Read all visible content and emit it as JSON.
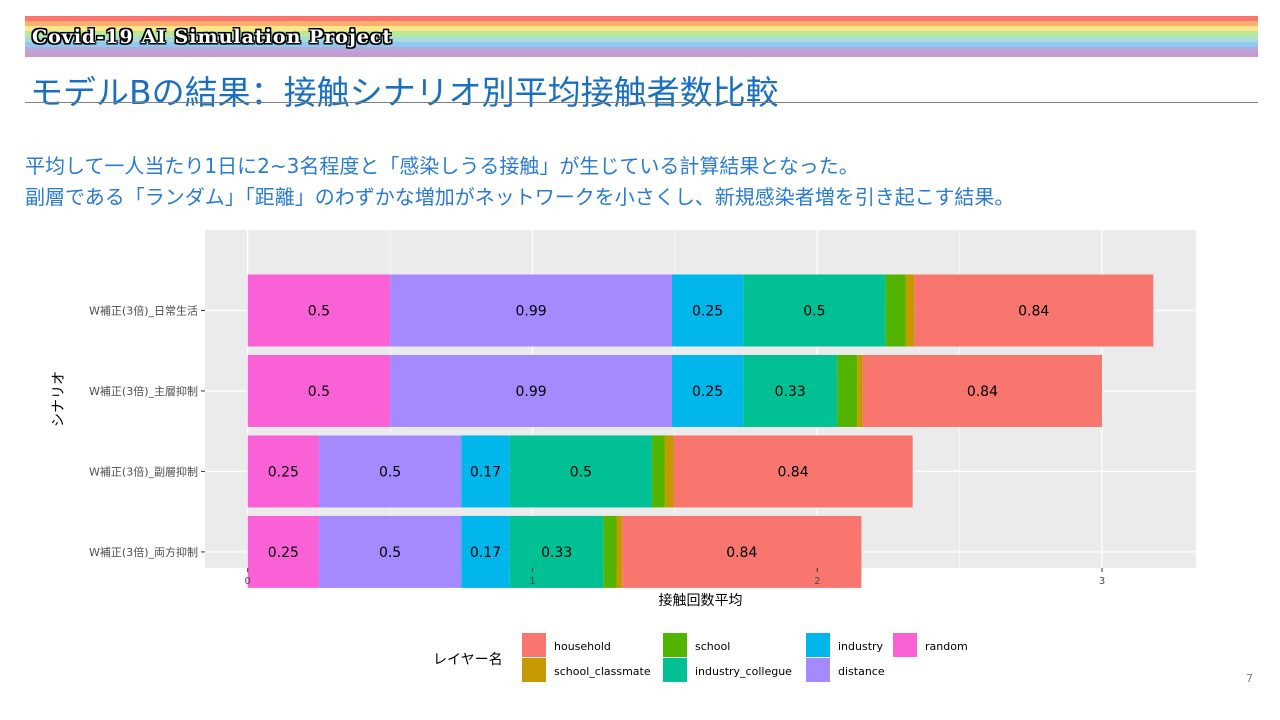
{
  "header": {
    "project_title": "Covid-19 AI Simulation Project",
    "rainbow_colors": [
      "#f8766d",
      "#fbb072",
      "#fde68a",
      "#b8e89a",
      "#a7dbe0",
      "#8fc9f0",
      "#b9a7d9",
      "#c59bd1"
    ]
  },
  "slide": {
    "title": "モデルBの結果：接触シナリオ別平均接触者数比較",
    "line1": "平均して一人当たり1日に2~3名程度と「感染しうる接触」が生じている計算結果となった。",
    "line2": "副層である「ランダム」「距離」のわずかな増加がネットワークを小さくし、新規感染者増を引き起こす結果。",
    "page_number": "7"
  },
  "colors": {
    "panel_bg": "#ebebeb",
    "household": "#f8766d",
    "school_classmate": "#c49a00",
    "school": "#53b400",
    "industry_collegue": "#00c094",
    "industry": "#00b6eb",
    "distance": "#a58aff",
    "random": "#fb61d7"
  },
  "chart_data": {
    "type": "bar",
    "orientation": "horizontal",
    "stacked": true,
    "categories": [
      "W補正(3倍)_日常生活",
      "W補正(3倍)_主層抑制",
      "W補正(3倍)_副層抑制",
      "W補正(3倍)_両方抑制"
    ],
    "series": [
      {
        "name": "random",
        "values": [
          0.5,
          0.5,
          0.25,
          0.25
        ]
      },
      {
        "name": "distance",
        "values": [
          0.99,
          0.99,
          0.5,
          0.5
        ]
      },
      {
        "name": "industry",
        "values": [
          0.25,
          0.25,
          0.17,
          0.17
        ]
      },
      {
        "name": "industry_collegue",
        "values": [
          0.5,
          0.33,
          0.5,
          0.33
        ]
      },
      {
        "name": "school",
        "values": [
          0.07,
          0.07,
          0.045,
          0.045
        ]
      },
      {
        "name": "school_classmate",
        "values": [
          0.03,
          0.02,
          0.03,
          0.02
        ]
      },
      {
        "name": "household",
        "values": [
          0.84,
          0.84,
          0.84,
          0.84
        ]
      }
    ],
    "bar_labels": [
      [
        "0.5",
        "0.99",
        "0.25",
        "0.5",
        "",
        "",
        "0.84"
      ],
      [
        "0.5",
        "0.99",
        "0.25",
        "0.33",
        "",
        "",
        "0.84"
      ],
      [
        "0.25",
        "0.5",
        "0.17",
        "0.5",
        "",
        "",
        "0.84"
      ],
      [
        "0.25",
        "0.5",
        "0.17",
        "0.33",
        "",
        "",
        "0.84"
      ]
    ],
    "xlabel": "接触回数平均",
    "ylabel": "シナリオ",
    "xlim": [
      -0.15,
      3.33
    ],
    "xticks": [
      0,
      1,
      2,
      3
    ],
    "grid": true,
    "legend": {
      "title": "レイヤー名",
      "position": "bottom",
      "entries": [
        "household",
        "school_classmate",
        "school",
        "industry_collegue",
        "industry",
        "distance",
        "random"
      ]
    }
  }
}
